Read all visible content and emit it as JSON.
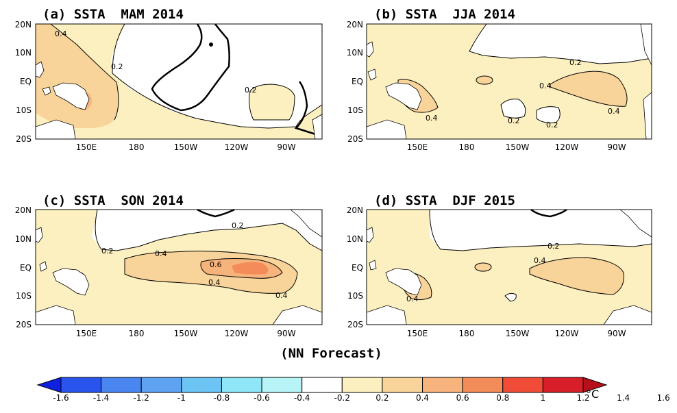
{
  "colors": {
    "land": "#ffffff",
    "bins": [
      "#1020e0",
      "#2a54ee",
      "#4a86f0",
      "#5ea2f2",
      "#6cc4f4",
      "#8ee6f6",
      "#b6f4f8",
      "#ffffff",
      "#fcefc0",
      "#f9d49a",
      "#f6b47c",
      "#f48c5a",
      "#f04c38",
      "#d81e28",
      "#b8101a"
    ]
  },
  "panels": [
    {
      "title": "(a) SSTA  MAM 2014",
      "contour_labels": [
        "0.4",
        "0.2",
        "0.2"
      ]
    },
    {
      "title": "(b) SSTA  JJA 2014",
      "contour_labels": [
        "0.2",
        "0.4",
        "0.4",
        "0.4",
        "0.2",
        "0.2"
      ]
    },
    {
      "title": "(c) SSTA  SON 2014",
      "contour_labels": [
        "0.2",
        "0.2",
        "0.4",
        "0.6",
        "0.4",
        "0.4"
      ]
    },
    {
      "title": "(d) SSTA  DJF 2015",
      "contour_labels": [
        "0.2",
        "0.4",
        "0.4"
      ]
    }
  ],
  "lat_ticks": [
    "20N",
    "10N",
    "EQ",
    "10S",
    "20S"
  ],
  "lon_ticks": [
    "150E",
    "180",
    "150W",
    "120W",
    "90W"
  ],
  "caption": "(NN Forecast)",
  "colorbar": {
    "labels": [
      "-1.6",
      "-1.4",
      "-1.2",
      "-1",
      "-0.8",
      "-0.6",
      "-0.4",
      "-0.2",
      "0.2",
      "0.4",
      "0.6",
      "0.8",
      "1",
      "1.2",
      "1.4",
      "1.6"
    ],
    "unit": "°C"
  }
}
